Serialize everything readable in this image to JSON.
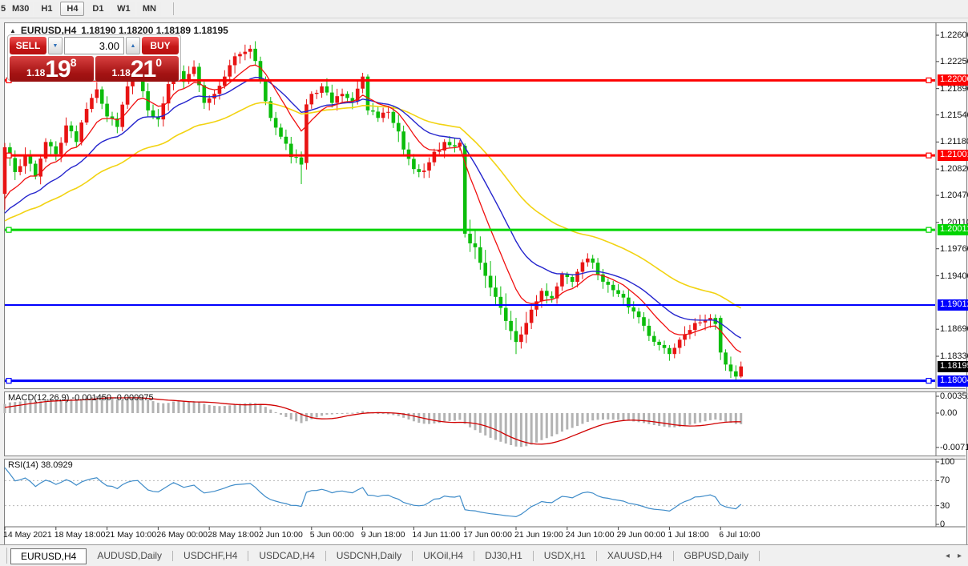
{
  "toolbar": {
    "timeframes": [
      "5",
      "M30",
      "H1",
      "H4",
      "D1",
      "W1",
      "MN"
    ],
    "active": "H4"
  },
  "chart_header": {
    "collapse_icon": "▲",
    "symbol": "EURUSD,H4",
    "ohlc": "1.18190 1.18200 1.18189 1.18195"
  },
  "trade_panel": {
    "sell_label": "SELL",
    "buy_label": "BUY",
    "volume": "3.00",
    "spinner_down_icon": "▼",
    "spinner_up_icon": "▲",
    "sell_price": {
      "prefix": "1.18",
      "big": "19",
      "sup": "8"
    },
    "buy_price": {
      "prefix": "1.18",
      "big": "21",
      "sup": "0"
    }
  },
  "colors": {
    "candle_up": "#e81414",
    "candle_down": "#0cbd0c",
    "ma_fast": "#f01010",
    "ma_mid": "#2525cd",
    "ma_slow": "#f2d312",
    "level_red": "#fe0000",
    "level_green": "#00d400",
    "level_blue": "#0000fe",
    "current_tag_bg": "#000000",
    "macd_hist": "#b3b3b3",
    "macd_signal": "#d00000",
    "rsi_line": "#3f8cc9",
    "grid_dotted": "#b8b8b8",
    "axis_line": "#6e6e6e"
  },
  "price_axis": {
    "ticks": [
      "1.22600",
      "1.22250",
      "1.21890",
      "1.21540",
      "1.21180",
      "1.20820",
      "1.20470",
      "1.20110",
      "1.19760",
      "1.19400",
      "1.18690",
      "1.18330"
    ],
    "tick_values": [
      1.226,
      1.2225,
      1.2189,
      1.2154,
      1.2118,
      1.2082,
      1.2047,
      1.2011,
      1.1976,
      1.194,
      1.1869,
      1.1833
    ]
  },
  "chart_data": {
    "type": "candlestick",
    "symbol": "EURUSD",
    "timeframe": "H4",
    "n_candles": 145,
    "seed": 97,
    "y_axis": {
      "price_top": 1.22749,
      "price_bottom": 1.17883
    },
    "x_labels": [
      "14 May 2021",
      "18 May 18:00",
      "21 May 10:00",
      "26 May 00:00",
      "28 May 18:00",
      "2 Jun 10:00",
      "5 Jun 00:00",
      "9 Jun 18:00",
      "14 Jun 11:00",
      "17 Jun 00:00",
      "21 Jun 19:00",
      "24 Jun 10:00",
      "29 Jun 00:00",
      "1 Jul 18:00",
      "6 Jul 10:00"
    ],
    "candles_per_label": 10,
    "close_waypoints": [
      [
        0,
        1.2111
      ],
      [
        2,
        1.2078
      ],
      [
        4,
        1.21
      ],
      [
        6,
        1.2072
      ],
      [
        8,
        1.2118
      ],
      [
        10,
        1.2102
      ],
      [
        12,
        1.214
      ],
      [
        14,
        1.2118
      ],
      [
        16,
        1.2162
      ],
      [
        18,
        1.2188
      ],
      [
        20,
        1.2152
      ],
      [
        22,
        1.2138
      ],
      [
        24,
        1.2192
      ],
      [
        26,
        1.2208
      ],
      [
        28,
        1.216
      ],
      [
        30,
        1.2148
      ],
      [
        32,
        1.2195
      ],
      [
        33,
        1.2225
      ],
      [
        35,
        1.2198
      ],
      [
        37,
        1.2218
      ],
      [
        39,
        1.217
      ],
      [
        41,
        1.2182
      ],
      [
        43,
        1.2205
      ],
      [
        45,
        1.2232
      ],
      [
        47,
        1.2238
      ],
      [
        48,
        1.2242
      ],
      [
        50,
        1.22
      ],
      [
        52,
        1.215
      ],
      [
        54,
        1.2125
      ],
      [
        56,
        1.2098
      ],
      [
        58,
        1.2088
      ],
      [
        59,
        1.2168
      ],
      [
        60,
        1.2182
      ],
      [
        62,
        1.2192
      ],
      [
        64,
        1.217
      ],
      [
        66,
        1.2182
      ],
      [
        68,
        1.2172
      ],
      [
        70,
        1.2205
      ],
      [
        71,
        1.216
      ],
      [
        73,
        1.215
      ],
      [
        75,
        1.2158
      ],
      [
        77,
        1.2132
      ],
      [
        78,
        1.2108
      ],
      [
        80,
        1.2082
      ],
      [
        82,
        1.208
      ],
      [
        84,
        1.2105
      ],
      [
        86,
        1.2118
      ],
      [
        88,
        1.2112
      ],
      [
        89,
        1.2117
      ],
      [
        90,
        1.1996
      ],
      [
        92,
        1.1978
      ],
      [
        94,
        1.194
      ],
      [
        96,
        1.1912
      ],
      [
        98,
        1.188
      ],
      [
        100,
        1.1852
      ],
      [
        101,
        1.1862
      ],
      [
        103,
        1.1895
      ],
      [
        105,
        1.192
      ],
      [
        107,
        1.191
      ],
      [
        109,
        1.1942
      ],
      [
        111,
        1.1932
      ],
      [
        113,
        1.1958
      ],
      [
        114,
        1.1963
      ],
      [
        116,
        1.1942
      ],
      [
        118,
        1.1928
      ],
      [
        120,
        1.1916
      ],
      [
        122,
        1.1898
      ],
      [
        124,
        1.1885
      ],
      [
        126,
        1.186
      ],
      [
        128,
        1.1848
      ],
      [
        130,
        1.1836
      ],
      [
        132,
        1.1855
      ],
      [
        134,
        1.1868
      ],
      [
        136,
        1.1878
      ],
      [
        138,
        1.1884
      ],
      [
        139,
        1.1876
      ],
      [
        140,
        1.1838
      ],
      [
        141,
        1.1822
      ],
      [
        142,
        1.1813
      ],
      [
        143,
        1.1806
      ],
      [
        144,
        1.18195
      ]
    ],
    "lead_in_waypoints": [
      [
        -60,
        1.207
      ],
      [
        -34,
        1.1948
      ],
      [
        -18,
        1.199
      ],
      [
        -1,
        1.2042
      ]
    ],
    "candle_overrides": {
      "0": {
        "o": 1.2049,
        "l": 1.2028
      },
      "33": {
        "h": 1.2235
      },
      "48": {
        "h": 1.2247
      },
      "58": {
        "l": 1.2062
      },
      "59": {
        "o": 1.209
      },
      "70": {
        "h": 1.221
      },
      "71": {
        "h": 1.2208
      },
      "77": {
        "l": 1.2118
      },
      "90": {
        "o": 1.2113,
        "h": 1.2116,
        "l": 1.1991
      },
      "100": {
        "l": 1.1836
      },
      "114": {
        "h": 1.197
      },
      "130": {
        "l": 1.1827
      },
      "140": {
        "o": 1.1884,
        "h": 1.1887
      },
      "143": {
        "l": 1.1799
      },
      "144": {
        "h": 1.1826,
        "l": 1.1804
      }
    },
    "ma_periods": {
      "fast": 10,
      "mid": 21,
      "slow": 45
    },
    "levels": [
      {
        "price": 1.22,
        "label": "1.22000",
        "color_key": "level_red",
        "width": 3,
        "marker": true,
        "name": "resistance-1-22000"
      },
      {
        "price": 1.21001,
        "label": "1.21001",
        "color_key": "level_red",
        "width": 3,
        "marker": true,
        "name": "resistance-1-21001"
      },
      {
        "price": 1.20011,
        "label": "1.20011",
        "color_key": "level_green",
        "width": 3,
        "marker": true,
        "name": "support-1-20011"
      },
      {
        "price": 1.19012,
        "label": "1.19012",
        "color_key": "level_blue",
        "width": 2,
        "marker": false,
        "name": "support-1-19012"
      },
      {
        "price": 1.18004,
        "label": "1.18004",
        "color_key": "level_blue",
        "width": 3,
        "marker": true,
        "name": "support-1-18004"
      }
    ],
    "current_price_tag": {
      "price": 1.18195,
      "label": "1.18195"
    },
    "indicators": {
      "macd": {
        "name": "MACD(12,26,9)",
        "value1": "-0.001450",
        "value2": "-0.000975",
        "axis_ticks": [
          "0.003515",
          "0.00",
          "-0.007178"
        ],
        "axis_values": [
          0.003515,
          0,
          -0.007178
        ],
        "params": {
          "fast": 12,
          "slow": 26,
          "signal": 9
        }
      },
      "rsi": {
        "name": "RSI(14)",
        "value": "38.0929",
        "axis_ticks": [
          "100",
          "70",
          "30",
          "0"
        ],
        "axis_values": [
          100,
          70,
          30,
          0
        ],
        "dotted_levels": [
          70,
          30
        ],
        "period": 14
      }
    }
  },
  "tabs": {
    "items": [
      "EURUSD,H4",
      "AUDUSD,Daily",
      "USDCHF,H4",
      "USDCAD,H4",
      "USDCNH,Daily",
      "UKOil,H4",
      "DJ30,H1",
      "USDX,H1",
      "XAUUSD,H4",
      "GBPUSD,Daily"
    ],
    "active_index": 0,
    "scroll_left_icon": "◂",
    "scroll_right_icon": "▸"
  }
}
